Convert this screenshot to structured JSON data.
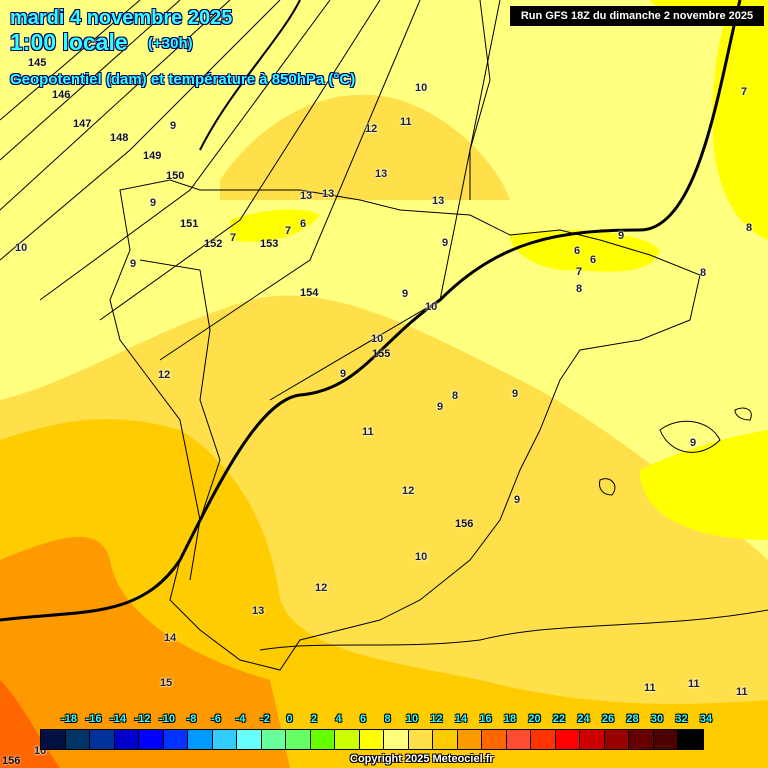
{
  "header": {
    "date": "mardi 4 novembre 2025",
    "time": "1:00 locale",
    "lead": "(+30h)",
    "parameter": "Geopotentiel (dam) et température à 850hPa (°C)",
    "run": "Run GFS 18Z du dimanche 2 novembre 2025"
  },
  "legend": {
    "ticks": [
      "-18",
      "-16",
      "-14",
      "-12",
      "-10",
      "-8",
      "-6",
      "-4",
      "-2",
      "0",
      "2",
      "4",
      "6",
      "8",
      "10",
      "12",
      "14",
      "16",
      "18",
      "20",
      "22",
      "24",
      "26",
      "28",
      "30",
      "32",
      "34"
    ],
    "colors": [
      "#001040",
      "#003366",
      "#003399",
      "#0000cc",
      "#0000ff",
      "#0033ff",
      "#0099ff",
      "#33ccff",
      "#66ffff",
      "#66ff99",
      "#66ff66",
      "#66ff00",
      "#ccff00",
      "#ffff00",
      "#ffff80",
      "#ffe04a",
      "#ffcc00",
      "#ff9900",
      "#ff6600",
      "#ff4c33",
      "#ff3300",
      "#ff0000",
      "#cc0000",
      "#990000",
      "#660000",
      "#4d0000",
      "#000000"
    ]
  },
  "geopotential_labels": [
    "145",
    "146",
    "147",
    "148",
    "149",
    "150",
    "151",
    "152",
    "153",
    "154",
    "155",
    "156",
    "156"
  ],
  "temperature_labels": [
    "10",
    "9",
    "12",
    "11",
    "13",
    "13",
    "13",
    "13",
    "9",
    "7",
    "6",
    "7",
    "9",
    "10",
    "9",
    "9",
    "6",
    "6",
    "7",
    "8",
    "8",
    "8",
    "7",
    "9",
    "10",
    "12",
    "10",
    "9",
    "8",
    "9",
    "11",
    "9",
    "12",
    "9",
    "10",
    "12",
    "13",
    "14",
    "15",
    "11",
    "11",
    "11",
    "9",
    "10"
  ],
  "copyright": "Copyright 2025 Meteociel.fr"
}
